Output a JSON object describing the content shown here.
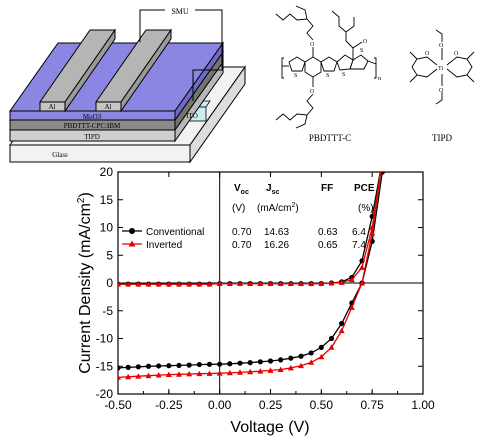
{
  "device": {
    "smu": "SMU",
    "al_left": "Al",
    "al_right": "Al",
    "layers": [
      "MoO3",
      "PBDTTT-CPC:IBM",
      "TIPD",
      "Glass"
    ],
    "ito": "ITO",
    "colors": {
      "moo3": "#8a86e2",
      "active": "#8a8a8a",
      "tipd": "#cfcfcf",
      "glass": "#f2f2f2",
      "ito": "#c9eef2"
    }
  },
  "molecules": {
    "left_name": "PBDTTT-C",
    "right_name": "TIPD"
  },
  "table": {
    "headers": [
      "V",
      "J",
      "FF",
      "PCE"
    ],
    "header_subs": [
      "oc",
      "sc"
    ],
    "units": [
      "(V)",
      "(mA/cm",
      "2",
      ")",
      "(%)"
    ],
    "rows": [
      {
        "label": "Conventional",
        "values": [
          "0.70",
          "14.63",
          "0.63",
          "6.4"
        ]
      },
      {
        "label": "Inverted",
        "values": [
          "0.70",
          "16.26",
          "0.65",
          "7.4"
        ]
      }
    ]
  },
  "chart_data": {
    "type": "line",
    "xlabel": "Voltage (V)",
    "ylabel_main": "Current Density (mA/cm",
    "ylabel_sup": "2",
    "ylabel_end": ")",
    "xlim": [
      -0.5,
      1.0
    ],
    "ylim": [
      -20,
      20
    ],
    "xticks": [
      "-0.50",
      "-0.25",
      "0.00",
      "0.25",
      "0.50",
      "0.75",
      "1.00"
    ],
    "yticks": [
      "-20",
      "-15",
      "-10",
      "-5",
      "0",
      "5",
      "10",
      "15",
      "20"
    ],
    "grid": false,
    "legend_position": "left",
    "series": [
      {
        "name": "Conventional",
        "color": "#000000",
        "marker": "circle",
        "x": [
          -0.5,
          -0.45,
          -0.4,
          -0.35,
          -0.3,
          -0.25,
          -0.2,
          -0.15,
          -0.1,
          -0.05,
          0.0,
          0.05,
          0.1,
          0.15,
          0.2,
          0.25,
          0.3,
          0.35,
          0.4,
          0.45,
          0.5,
          0.55,
          0.6,
          0.65,
          0.7,
          0.75,
          0.8
        ],
        "dark": [
          -0.2,
          -0.2,
          -0.2,
          -0.2,
          -0.2,
          -0.2,
          -0.2,
          -0.2,
          -0.2,
          -0.2,
          -0.1,
          -0.1,
          -0.1,
          -0.1,
          -0.1,
          -0.1,
          -0.1,
          -0.1,
          -0.1,
          -0.1,
          -0.1,
          0.0,
          0.2,
          1.0,
          4.0,
          12.0,
          22.0
        ],
        "light": [
          -15.3,
          -15.2,
          -15.1,
          -15.0,
          -14.95,
          -14.9,
          -14.85,
          -14.8,
          -14.7,
          -14.65,
          -14.63,
          -14.55,
          -14.45,
          -14.35,
          -14.2,
          -14.05,
          -13.85,
          -13.55,
          -13.2,
          -12.6,
          -11.6,
          -10.0,
          -7.3,
          -3.6,
          0.0,
          7.5,
          20.0
        ]
      },
      {
        "name": "Inverted",
        "color": "#e60000",
        "marker": "triangle",
        "x": [
          -0.5,
          -0.45,
          -0.4,
          -0.35,
          -0.3,
          -0.25,
          -0.2,
          -0.15,
          -0.1,
          -0.05,
          0.0,
          0.05,
          0.1,
          0.15,
          0.2,
          0.25,
          0.3,
          0.35,
          0.4,
          0.45,
          0.5,
          0.55,
          0.6,
          0.65,
          0.7,
          0.75,
          0.8
        ],
        "dark": [
          -0.2,
          -0.2,
          -0.2,
          -0.2,
          -0.2,
          -0.2,
          -0.2,
          -0.2,
          -0.2,
          -0.2,
          -0.1,
          -0.1,
          -0.1,
          -0.1,
          -0.1,
          -0.1,
          -0.1,
          -0.1,
          -0.1,
          -0.1,
          -0.1,
          0.0,
          0.1,
          0.6,
          2.8,
          10.0,
          22.0
        ],
        "light": [
          -17.0,
          -16.9,
          -16.8,
          -16.7,
          -16.6,
          -16.5,
          -16.45,
          -16.4,
          -16.35,
          -16.3,
          -16.26,
          -16.2,
          -16.1,
          -16.0,
          -15.9,
          -15.75,
          -15.6,
          -15.3,
          -14.9,
          -14.3,
          -13.3,
          -11.6,
          -8.6,
          -4.4,
          0.0,
          9.0,
          22.0
        ]
      }
    ]
  }
}
